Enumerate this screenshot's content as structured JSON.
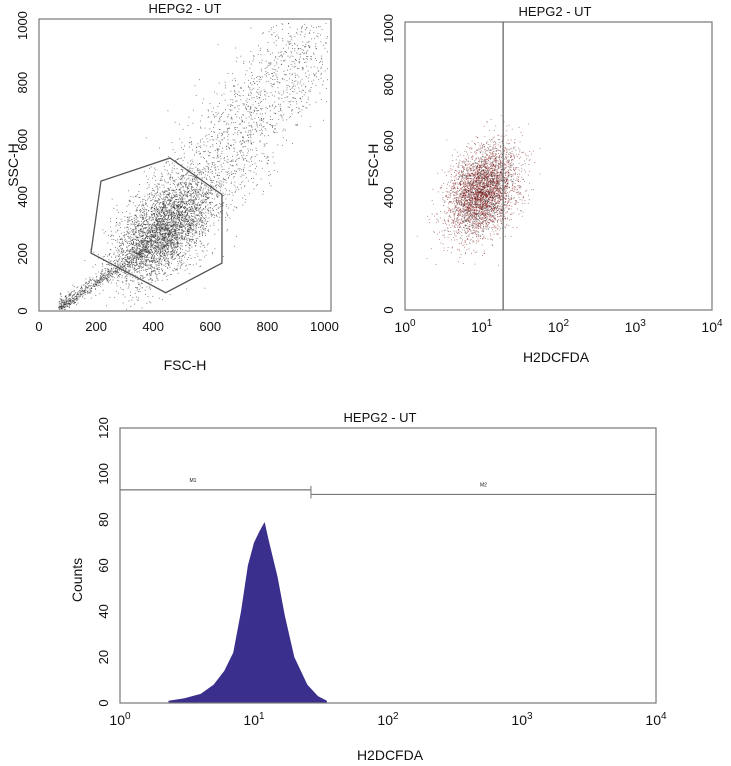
{
  "chart_data": [
    {
      "type": "scatter",
      "title": "HEPG2 - UT",
      "xlabel": "FSC-H",
      "ylabel": "SSC-H",
      "xlim": [
        0,
        1023
      ],
      "ylim": [
        0,
        1023
      ],
      "xticks": [
        "0",
        "200",
        "400",
        "600",
        "800",
        "1000"
      ],
      "yticks": [
        "0",
        "200",
        "400",
        "600",
        "800",
        "1000"
      ],
      "point_color": "#333333",
      "population_center": [
        430,
        280
      ],
      "gate": {
        "shape": "polygon",
        "vertices": [
          [
            217,
            455
          ],
          [
            459,
            536
          ],
          [
            641,
            408
          ],
          [
            641,
            168
          ],
          [
            444,
            64
          ],
          [
            182,
            203
          ]
        ]
      }
    },
    {
      "type": "scatter",
      "title": "HEPG2 - UT",
      "xlabel": "H2DCFDA",
      "ylabel": "FSC-H",
      "xscale": "log",
      "xlim": [
        1,
        10000
      ],
      "ylim": [
        0,
        1023
      ],
      "xticks": [
        {
          "base": "10",
          "exp": "0"
        },
        {
          "base": "10",
          "exp": "1"
        },
        {
          "base": "10",
          "exp": "2"
        },
        {
          "base": "10",
          "exp": "3"
        },
        {
          "base": "10",
          "exp": "4"
        }
      ],
      "yticks": [
        "0",
        "200",
        "400",
        "600",
        "800",
        "1000"
      ],
      "point_color": "#8b1a1a",
      "population_center": [
        10,
        420
      ],
      "gate": {
        "shape": "vertical-line",
        "x": 19
      }
    },
    {
      "type": "area",
      "title": "HEPG2 - UT",
      "xlabel": "H2DCFDA",
      "ylabel": "Counts",
      "xscale": "log",
      "xlim": [
        1,
        10000
      ],
      "ylim": [
        0,
        120
      ],
      "fill_color": "#3a2f8c",
      "xticks": [
        {
          "base": "10",
          "exp": "0"
        },
        {
          "base": "10",
          "exp": "1"
        },
        {
          "base": "10",
          "exp": "2"
        },
        {
          "base": "10",
          "exp": "3"
        },
        {
          "base": "10",
          "exp": "4"
        }
      ],
      "yticks": [
        "0",
        "20",
        "40",
        "60",
        "80",
        "100",
        "120"
      ],
      "x": [
        2.3,
        3,
        4,
        5,
        6,
        7,
        8,
        9,
        10,
        11,
        12,
        13,
        15,
        17,
        20,
        25,
        30,
        35
      ],
      "y": [
        1,
        2,
        4,
        8,
        14,
        22,
        40,
        60,
        70,
        75,
        79,
        70,
        55,
        38,
        20,
        8,
        3,
        1
      ],
      "markers": [
        {
          "label": "M1",
          "from": 1,
          "to": 26.6,
          "level": 93
        },
        {
          "label": "M2",
          "from": 26.6,
          "to": 10000,
          "level": 91
        }
      ]
    }
  ]
}
